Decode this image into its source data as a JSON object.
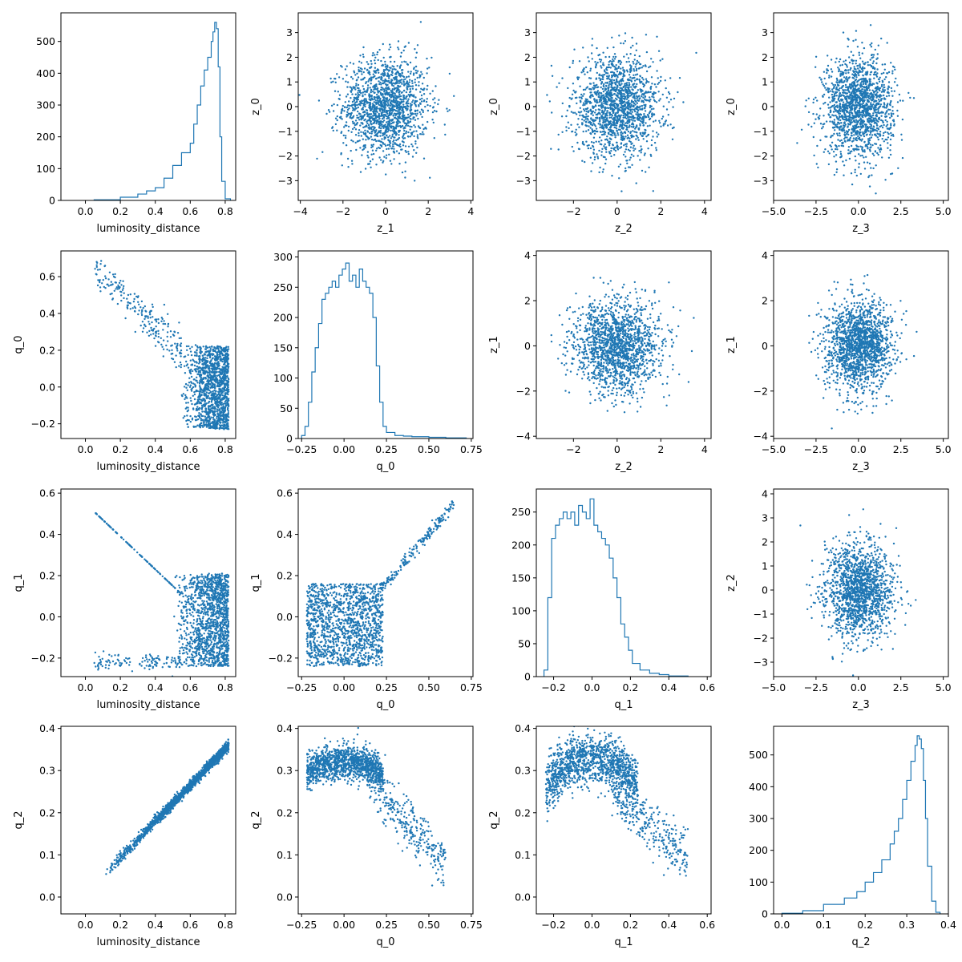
{
  "chart_data": [
    {
      "type": "histogram",
      "xlabel": "luminosity_distance",
      "ylabel": "",
      "xlim": [
        -0.14,
        0.86
      ],
      "ylim": [
        0,
        590
      ],
      "xticks": [
        0.0,
        0.2,
        0.4,
        0.6,
        0.8
      ],
      "xtick_labels": [
        "0.0",
        "0.2",
        "0.4",
        "0.6",
        "0.8"
      ],
      "yticks": [
        0,
        100,
        200,
        300,
        400,
        500
      ],
      "ytick_labels": [
        "0",
        "100",
        "200",
        "300",
        "400",
        "500"
      ],
      "bin_edges": [
        0.05,
        0.2,
        0.3,
        0.35,
        0.4,
        0.45,
        0.5,
        0.55,
        0.6,
        0.62,
        0.64,
        0.66,
        0.68,
        0.7,
        0.72,
        0.73,
        0.74,
        0.75,
        0.76,
        0.77,
        0.78,
        0.8,
        0.83
      ],
      "values": [
        2,
        10,
        20,
        30,
        40,
        70,
        110,
        150,
        180,
        240,
        300,
        360,
        410,
        450,
        500,
        530,
        560,
        540,
        420,
        200,
        60,
        5
      ],
      "color": "#1f77b4"
    },
    {
      "type": "scatter",
      "xlabel": "z_1",
      "ylabel": "z_0",
      "xlim": [
        -4.1,
        4.1
      ],
      "ylim": [
        -3.8,
        3.8
      ],
      "xticks": [
        -4,
        -2,
        0,
        2,
        4
      ],
      "xtick_labels": [
        "−4",
        "−2",
        "0",
        "2",
        "4"
      ],
      "yticks": [
        -3,
        -2,
        -1,
        0,
        1,
        2,
        3
      ],
      "ytick_labels": [
        "−3",
        "−2",
        "−1",
        "0",
        "1",
        "2",
        "3"
      ],
      "distribution": {
        "kind": "gaussian",
        "mean_x": 0,
        "sd_x": 1,
        "mean_y": 0,
        "sd_y": 1,
        "n": 1600
      },
      "color": "#1f77b4"
    },
    {
      "type": "scatter",
      "xlabel": "z_2",
      "ylabel": "z_0",
      "xlim": [
        -3.7,
        4.3
      ],
      "ylim": [
        -3.8,
        3.8
      ],
      "xticks": [
        -2,
        0,
        2,
        4
      ],
      "xtick_labels": [
        "−2",
        "0",
        "2",
        "4"
      ],
      "yticks": [
        -3,
        -2,
        -1,
        0,
        1,
        2,
        3
      ],
      "ytick_labels": [
        "−3",
        "−2",
        "−1",
        "0",
        "1",
        "2",
        "3"
      ],
      "distribution": {
        "kind": "gaussian",
        "mean_x": 0,
        "sd_x": 1,
        "mean_y": 0,
        "sd_y": 1,
        "n": 1600
      },
      "color": "#1f77b4"
    },
    {
      "type": "scatter",
      "xlabel": "z_3",
      "ylabel": "z_0",
      "xlim": [
        -5.0,
        5.3
      ],
      "ylim": [
        -3.8,
        3.8
      ],
      "xticks": [
        -5.0,
        -2.5,
        0.0,
        2.5,
        5.0
      ],
      "xtick_labels": [
        "−5.0",
        "−2.5",
        "0.0",
        "2.5",
        "5.0"
      ],
      "yticks": [
        -3,
        -2,
        -1,
        0,
        1,
        2,
        3
      ],
      "ytick_labels": [
        "−3",
        "−2",
        "−1",
        "0",
        "1",
        "2",
        "3"
      ],
      "distribution": {
        "kind": "gaussian",
        "mean_x": 0,
        "sd_x": 1,
        "mean_y": 0,
        "sd_y": 1,
        "n": 1600
      },
      "color": "#1f77b4"
    },
    {
      "type": "scatter",
      "xlabel": "luminosity_distance",
      "ylabel": "q_0",
      "xlim": [
        -0.14,
        0.86
      ],
      "ylim": [
        -0.28,
        0.74
      ],
      "xticks": [
        0.0,
        0.2,
        0.4,
        0.6,
        0.8
      ],
      "xtick_labels": [
        "0.0",
        "0.2",
        "0.4",
        "0.6",
        "0.8"
      ],
      "yticks": [
        -0.2,
        0.0,
        0.2,
        0.4,
        0.6
      ],
      "ytick_labels": [
        "−0.2",
        "0.0",
        "0.2",
        "0.4",
        "0.6"
      ],
      "distribution": {
        "kind": "lumq0",
        "n": 1600
      },
      "color": "#1f77b4"
    },
    {
      "type": "histogram",
      "xlabel": "q_0",
      "ylabel": "",
      "xlim": [
        -0.27,
        0.76
      ],
      "ylim": [
        0,
        310
      ],
      "xticks": [
        -0.25,
        0.0,
        0.25,
        0.5,
        0.75
      ],
      "xtick_labels": [
        "−0.25",
        "0.00",
        "0.25",
        "0.50",
        "0.75"
      ],
      "yticks": [
        0,
        50,
        100,
        150,
        200,
        250,
        300
      ],
      "ytick_labels": [
        "0",
        "50",
        "100",
        "150",
        "200",
        "250",
        "300"
      ],
      "bin_edges": [
        -0.25,
        -0.23,
        -0.21,
        -0.19,
        -0.17,
        -0.15,
        -0.13,
        -0.11,
        -0.09,
        -0.07,
        -0.05,
        -0.03,
        -0.01,
        0.01,
        0.03,
        0.05,
        0.07,
        0.09,
        0.11,
        0.13,
        0.15,
        0.17,
        0.19,
        0.21,
        0.23,
        0.25,
        0.3,
        0.35,
        0.4,
        0.5,
        0.6,
        0.72
      ],
      "values": [
        5,
        20,
        60,
        110,
        150,
        190,
        230,
        240,
        250,
        260,
        250,
        270,
        280,
        290,
        260,
        270,
        250,
        280,
        260,
        250,
        240,
        200,
        120,
        60,
        20,
        10,
        5,
        4,
        3,
        2,
        1
      ],
      "color": "#1f77b4"
    },
    {
      "type": "scatter",
      "xlabel": "z_2",
      "ylabel": "z_1",
      "xlim": [
        -3.7,
        4.3
      ],
      "ylim": [
        -4.1,
        4.2
      ],
      "xticks": [
        -2,
        0,
        2,
        4
      ],
      "xtick_labels": [
        "−2",
        "0",
        "2",
        "4"
      ],
      "yticks": [
        -4,
        -2,
        0,
        2,
        4
      ],
      "ytick_labels": [
        "−4",
        "−2",
        "0",
        "2",
        "4"
      ],
      "distribution": {
        "kind": "gaussian",
        "mean_x": 0,
        "sd_x": 1,
        "mean_y": 0,
        "sd_y": 1,
        "n": 1600
      },
      "color": "#1f77b4"
    },
    {
      "type": "scatter",
      "xlabel": "z_3",
      "ylabel": "z_1",
      "xlim": [
        -5.0,
        5.3
      ],
      "ylim": [
        -4.1,
        4.2
      ],
      "xticks": [
        -5.0,
        -2.5,
        0.0,
        2.5,
        5.0
      ],
      "xtick_labels": [
        "−5.0",
        "−2.5",
        "0.0",
        "2.5",
        "5.0"
      ],
      "yticks": [
        -4,
        -2,
        0,
        2,
        4
      ],
      "ytick_labels": [
        "−4",
        "−2",
        "0",
        "2",
        "4"
      ],
      "distribution": {
        "kind": "gaussian",
        "mean_x": 0,
        "sd_x": 1,
        "mean_y": 0,
        "sd_y": 1,
        "n": 1600
      },
      "color": "#1f77b4"
    },
    {
      "type": "scatter",
      "xlabel": "luminosity_distance",
      "ylabel": "q_1",
      "xlim": [
        -0.14,
        0.86
      ],
      "ylim": [
        -0.29,
        0.62
      ],
      "xticks": [
        0.0,
        0.2,
        0.4,
        0.6,
        0.8
      ],
      "xtick_labels": [
        "0.0",
        "0.2",
        "0.4",
        "0.6",
        "0.8"
      ],
      "yticks": [
        -0.2,
        0.0,
        0.2,
        0.4,
        0.6
      ],
      "ytick_labels": [
        "−0.2",
        "0.0",
        "0.2",
        "0.4",
        "0.6"
      ],
      "distribution": {
        "kind": "lumq1",
        "n": 1600
      },
      "color": "#1f77b4"
    },
    {
      "type": "scatter",
      "xlabel": "q_0",
      "ylabel": "q_1",
      "xlim": [
        -0.27,
        0.76
      ],
      "ylim": [
        -0.29,
        0.62
      ],
      "xticks": [
        -0.25,
        0.0,
        0.25,
        0.5,
        0.75
      ],
      "xtick_labels": [
        "−0.25",
        "0.00",
        "0.25",
        "0.50",
        "0.75"
      ],
      "yticks": [
        -0.2,
        0.0,
        0.2,
        0.4,
        0.6
      ],
      "ytick_labels": [
        "−0.2",
        "0.0",
        "0.2",
        "0.4",
        "0.6"
      ],
      "distribution": {
        "kind": "q0q1",
        "n": 1600
      },
      "color": "#1f77b4"
    },
    {
      "type": "histogram",
      "xlabel": "q_1",
      "ylabel": "",
      "xlim": [
        -0.29,
        0.62
      ],
      "ylim": [
        0,
        285
      ],
      "xticks": [
        -0.2,
        0.0,
        0.2,
        0.4,
        0.6
      ],
      "xtick_labels": [
        "−0.2",
        "0.0",
        "0.2",
        "0.4",
        "0.6"
      ],
      "yticks": [
        0,
        50,
        100,
        150,
        200,
        250
      ],
      "ytick_labels": [
        "0",
        "50",
        "100",
        "150",
        "200",
        "250"
      ],
      "bin_edges": [
        -0.25,
        -0.23,
        -0.21,
        -0.19,
        -0.17,
        -0.15,
        -0.13,
        -0.11,
        -0.09,
        -0.07,
        -0.05,
        -0.03,
        -0.01,
        0.01,
        0.03,
        0.05,
        0.07,
        0.09,
        0.11,
        0.13,
        0.15,
        0.17,
        0.19,
        0.21,
        0.25,
        0.3,
        0.35,
        0.4,
        0.5
      ],
      "values": [
        10,
        120,
        210,
        230,
        240,
        250,
        240,
        250,
        230,
        260,
        250,
        240,
        270,
        230,
        220,
        210,
        200,
        180,
        150,
        120,
        80,
        60,
        40,
        20,
        10,
        5,
        3,
        1
      ],
      "color": "#1f77b4"
    },
    {
      "type": "scatter",
      "xlabel": "z_3",
      "ylabel": "z_2",
      "xlim": [
        -5.0,
        5.3
      ],
      "ylim": [
        -3.6,
        4.2
      ],
      "xticks": [
        -5.0,
        -2.5,
        0.0,
        2.5,
        5.0
      ],
      "xtick_labels": [
        "−5.0",
        "−2.5",
        "0.0",
        "2.5",
        "5.0"
      ],
      "yticks": [
        -3,
        -2,
        -1,
        0,
        1,
        2,
        3,
        4
      ],
      "ytick_labels": [
        "−3",
        "−2",
        "−1",
        "0",
        "1",
        "2",
        "3",
        "4"
      ],
      "distribution": {
        "kind": "gaussian",
        "mean_x": 0,
        "sd_x": 1,
        "mean_y": 0,
        "sd_y": 1,
        "n": 1600
      },
      "color": "#1f77b4"
    },
    {
      "type": "scatter",
      "xlabel": "luminosity_distance",
      "ylabel": "q_2",
      "xlim": [
        -0.14,
        0.86
      ],
      "ylim": [
        -0.04,
        0.405
      ],
      "xticks": [
        0.0,
        0.2,
        0.4,
        0.6,
        0.8
      ],
      "xtick_labels": [
        "0.0",
        "0.2",
        "0.4",
        "0.6",
        "0.8"
      ],
      "yticks": [
        0.0,
        0.1,
        0.2,
        0.3,
        0.4
      ],
      "ytick_labels": [
        "0.0",
        "0.1",
        "0.2",
        "0.3",
        "0.4"
      ],
      "distribution": {
        "kind": "lumq2",
        "n": 1600
      },
      "color": "#1f77b4"
    },
    {
      "type": "scatter",
      "xlabel": "q_0",
      "ylabel": "q_2",
      "xlim": [
        -0.27,
        0.76
      ],
      "ylim": [
        -0.04,
        0.405
      ],
      "xticks": [
        -0.25,
        0.0,
        0.25,
        0.5,
        0.75
      ],
      "xtick_labels": [
        "−0.25",
        "0.00",
        "0.25",
        "0.50",
        "0.75"
      ],
      "yticks": [
        0.0,
        0.1,
        0.2,
        0.3,
        0.4
      ],
      "ytick_labels": [
        "0.0",
        "0.1",
        "0.2",
        "0.3",
        "0.4"
      ],
      "distribution": {
        "kind": "q0q2",
        "n": 1600
      },
      "color": "#1f77b4"
    },
    {
      "type": "scatter",
      "xlabel": "q_1",
      "ylabel": "q_2",
      "xlim": [
        -0.29,
        0.62
      ],
      "ylim": [
        -0.04,
        0.405
      ],
      "xticks": [
        -0.2,
        0.0,
        0.2,
        0.4,
        0.6
      ],
      "xtick_labels": [
        "−0.2",
        "0.0",
        "0.2",
        "0.4",
        "0.6"
      ],
      "yticks": [
        0.0,
        0.1,
        0.2,
        0.3,
        0.4
      ],
      "ytick_labels": [
        "0.0",
        "0.1",
        "0.2",
        "0.3",
        "0.4"
      ],
      "distribution": {
        "kind": "q1q2",
        "n": 1600
      },
      "color": "#1f77b4"
    },
    {
      "type": "histogram",
      "xlabel": "q_2",
      "ylabel": "",
      "xlim": [
        -0.02,
        0.4
      ],
      "ylim": [
        0,
        590
      ],
      "xticks": [
        0.0,
        0.1,
        0.2,
        0.3,
        0.4
      ],
      "xtick_labels": [
        "0.0",
        "0.1",
        "0.2",
        "0.3",
        "0.4"
      ],
      "yticks": [
        0,
        100,
        200,
        300,
        400,
        500
      ],
      "ytick_labels": [
        "0",
        "100",
        "200",
        "300",
        "400",
        "500"
      ],
      "bin_edges": [
        0.0,
        0.05,
        0.1,
        0.15,
        0.18,
        0.2,
        0.22,
        0.24,
        0.26,
        0.27,
        0.28,
        0.29,
        0.3,
        0.31,
        0.32,
        0.325,
        0.33,
        0.335,
        0.34,
        0.345,
        0.35,
        0.36,
        0.37,
        0.38
      ],
      "values": [
        2,
        10,
        30,
        50,
        70,
        100,
        130,
        170,
        220,
        260,
        300,
        360,
        420,
        480,
        530,
        560,
        550,
        520,
        420,
        300,
        150,
        40,
        5
      ],
      "color": "#1f77b4"
    }
  ]
}
